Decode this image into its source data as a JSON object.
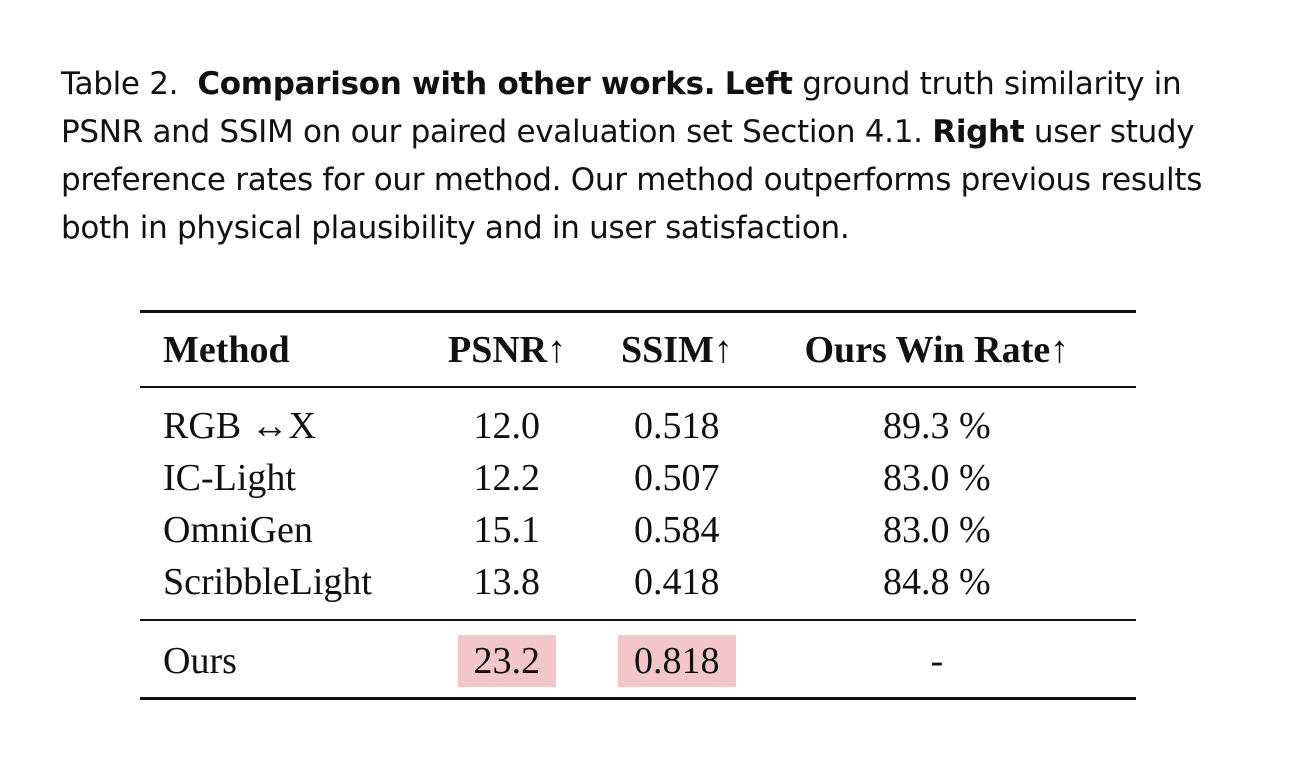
{
  "caption": {
    "label": "Table 2.",
    "title": "Comparison with other works.",
    "left_label": "Left",
    "left_text": "ground truth similarity in PSNR and SSIM on our paired evaluation set Section 4.1.",
    "right_label": "Right",
    "right_text": "user study preference rates for our method. Our method outperforms previous results both in physical plausibility and in user satisfaction."
  },
  "table": {
    "headers": [
      "Method",
      "PSNR↑",
      "SSIM↑",
      "Ours Win Rate↑"
    ],
    "rows": [
      [
        "RGB ↔X",
        "12.0",
        "0.518",
        "89.3 %"
      ],
      [
        "IC-Light",
        "12.2",
        "0.507",
        "83.0 %"
      ],
      [
        "OmniGen",
        "15.1",
        "0.584",
        "83.0 %"
      ],
      [
        "ScribbleLight",
        "13.8",
        "0.418",
        "84.8 %"
      ]
    ],
    "ours_row": [
      "Ours",
      "23.2",
      "0.818",
      "-"
    ]
  }
}
